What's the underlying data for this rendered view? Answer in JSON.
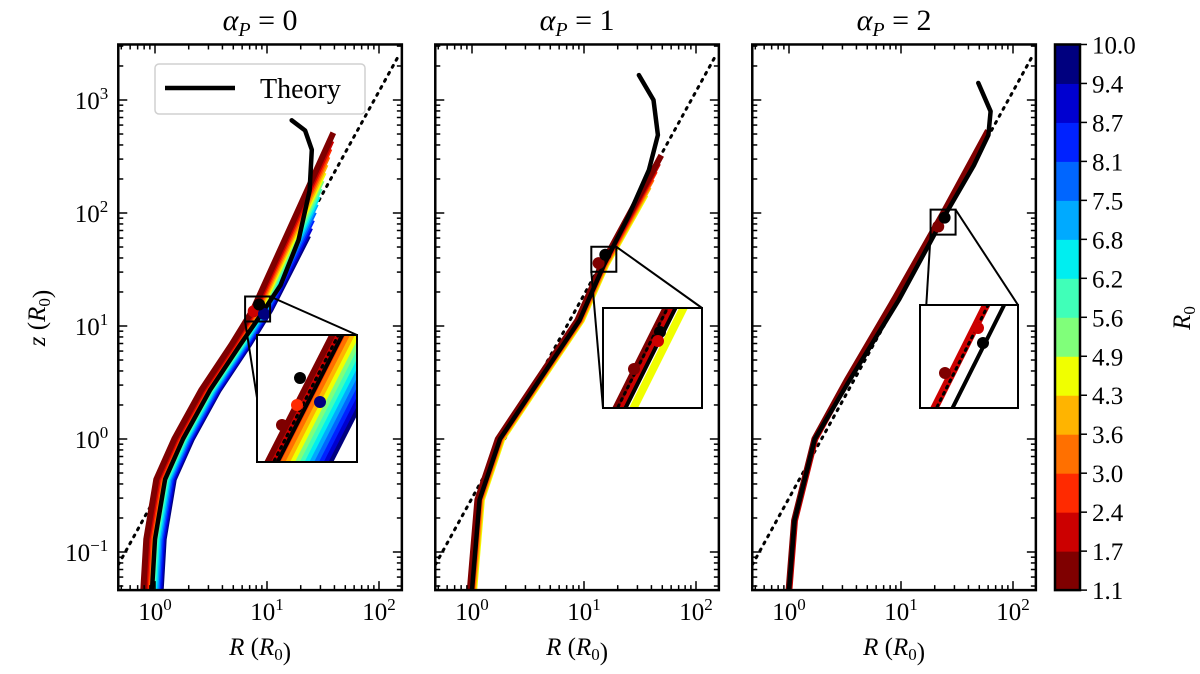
{
  "chart_data": {
    "type": "line",
    "xlabel": "R (R_0)",
    "ylabel": "z (R_0)",
    "xscale": "log",
    "yscale": "log",
    "xlim": [
      0.47,
      160
    ],
    "ylim": [
      0.046,
      3100
    ],
    "x_tick_labels": [
      "10^0",
      "10^1",
      "10^2"
    ],
    "y_tick_labels": [
      "10^-1",
      "10^0",
      "10^1",
      "10^2",
      "10^3"
    ],
    "legend": {
      "entries": [
        "Theory"
      ],
      "placement": "top-left of first panel"
    },
    "reference_line": {
      "style": "dotted",
      "color": "#000000",
      "formula_approx": "z = 0.3 R^1.8"
    },
    "colorbar": {
      "label": "R_0",
      "tick_labels": [
        "1.1",
        "1.7",
        "2.4",
        "3.0",
        "3.6",
        "4.3",
        "4.9",
        "5.6",
        "6.2",
        "6.8",
        "7.5",
        "8.1",
        "8.7",
        "9.4",
        "10.0"
      ],
      "colors": [
        "#7f0000",
        "#cc0000",
        "#ff2a00",
        "#ff7000",
        "#ffb400",
        "#f0ff00",
        "#80ff7a",
        "#40ffb8",
        "#00eef0",
        "#00aaff",
        "#0066ff",
        "#0022ff",
        "#0000d0",
        "#00007f"
      ]
    },
    "panels": [
      {
        "title": {
          "symbol": "α",
          "sub": "P",
          "rest": " = 0"
        },
        "theory": [
          [
            0.94,
            0.046
          ],
          [
            1.0,
            0.13
          ],
          [
            1.23,
            0.44
          ],
          [
            1.78,
            1
          ],
          [
            3.09,
            2.7
          ],
          [
            5.75,
            6.8
          ],
          [
            9.12,
            13.2
          ],
          [
            13.2,
            22.9
          ],
          [
            19.1,
            57.5
          ],
          [
            24,
            158
          ],
          [
            25.1,
            363
          ],
          [
            21.9,
            537
          ],
          [
            16.6,
            661
          ]
        ],
        "sim_shared": [
          [
            0.94,
            0.046
          ],
          [
            1.0,
            0.13
          ],
          [
            1.23,
            0.44
          ],
          [
            1.78,
            1
          ],
          [
            3.09,
            2.7
          ],
          [
            5.75,
            6.8
          ],
          [
            9.0,
            14
          ]
        ],
        "sim_color_indices": [
          0,
          1,
          2,
          3,
          4,
          5,
          6,
          7,
          8,
          9,
          10,
          11,
          12,
          13
        ],
        "sim_end_first": [
          46.8,
          513
        ],
        "sim_end_last": [
          19.5,
          63
        ],
        "markers": [
          {
            "R": 7.6,
            "z": 13.5,
            "color": "#cc0000"
          },
          {
            "R": 9.4,
            "z": 12.8,
            "color": "#00007f"
          },
          {
            "R": 8.5,
            "z": 15.5,
            "color": "#000000"
          }
        ],
        "inset_style": "rainbow"
      },
      {
        "title": {
          "symbol": "α",
          "sub": "P",
          "rest": " = 1"
        },
        "theory": [
          [
            1.0,
            0.046
          ],
          [
            1.17,
            0.29
          ],
          [
            1.78,
            1
          ],
          [
            3.98,
            3.3
          ],
          [
            9.12,
            11.2
          ],
          [
            15.1,
            34.7
          ],
          [
            25.1,
            95
          ],
          [
            38,
            240
          ],
          [
            45.7,
            490
          ],
          [
            41.7,
            1000
          ],
          [
            30.9,
            1660
          ]
        ],
        "sim_shared": [
          [
            1.0,
            0.046
          ],
          [
            1.17,
            0.29
          ],
          [
            1.78,
            1
          ],
          [
            3.98,
            3.3
          ],
          [
            9.12,
            11.2
          ],
          [
            15.1,
            34.7
          ]
        ],
        "sim_color_indices": [
          0,
          1,
          2,
          3,
          4,
          5
        ],
        "sim_end_first": [
          51.3,
          324
        ],
        "sim_end_last": [
          33.9,
          145
        ],
        "markers": [
          {
            "R": 13.5,
            "z": 36,
            "color": "#7f0000"
          },
          {
            "R": 15.5,
            "z": 42.7,
            "color": "#000000"
          }
        ],
        "inset_style": "yellow"
      },
      {
        "title": {
          "symbol": "α",
          "sub": "P",
          "rest": " = 2"
        },
        "theory": [
          [
            1.0,
            0.046
          ],
          [
            1.12,
            0.19
          ],
          [
            1.7,
            1
          ],
          [
            3.47,
            3.3
          ],
          [
            9.55,
            17
          ],
          [
            24,
            91
          ],
          [
            44.7,
            263
          ],
          [
            60.3,
            490
          ],
          [
            63.1,
            794
          ],
          [
            49,
            1413
          ]
        ],
        "sim_shared": [
          [
            1.0,
            0.046
          ],
          [
            1.12,
            0.19
          ],
          [
            1.7,
            1
          ],
          [
            3.3,
            3.3
          ],
          [
            9,
            18
          ],
          [
            24,
            100
          ]
        ],
        "sim_color_indices": [
          0,
          1
        ],
        "sim_end_first": [
          60.3,
          537
        ],
        "sim_end_last": [
          55,
          450
        ],
        "markers": [
          {
            "R": 21.5,
            "z": 76,
            "color": "#7f0000"
          },
          {
            "R": 24.5,
            "z": 91,
            "color": "#000000"
          }
        ],
        "inset_style": "red"
      }
    ]
  }
}
